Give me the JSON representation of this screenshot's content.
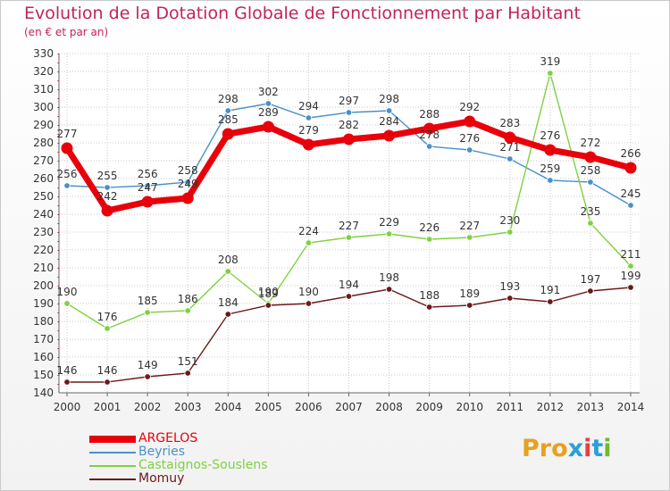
{
  "title": "Evolution de la Dotation Globale de Fonctionnement par Habitant",
  "subtitle": "(en € et par an)",
  "logo_text": "Proxiti",
  "logo_colors": [
    "#e8a020",
    "#e8a020",
    "#e8a020",
    "#2a9fd8",
    "#e84040",
    "#2a9fd8",
    "#70b830"
  ],
  "chart_data": {
    "type": "line",
    "x": [
      "2000",
      "2001",
      "2002",
      "2003",
      "2004",
      "2005",
      "2006",
      "2007",
      "2008",
      "2009",
      "2010",
      "2011",
      "2012",
      "2013",
      "2014"
    ],
    "ylim": [
      140,
      330
    ],
    "yticks": [
      140,
      150,
      160,
      170,
      180,
      190,
      200,
      210,
      220,
      230,
      240,
      250,
      260,
      270,
      280,
      290,
      300,
      310,
      320,
      330
    ],
    "grid": true,
    "legend_position": "bottom-left",
    "series": [
      {
        "name": "ARGELOS",
        "color": "#e8000b",
        "emphasis": true,
        "values": [
          277,
          242,
          247,
          249,
          285,
          289,
          279,
          282,
          284,
          288,
          292,
          283,
          276,
          272,
          266
        ],
        "labels": [
          "277",
          "242",
          "247",
          "249",
          "285",
          "289",
          "279",
          "282",
          "284",
          "288",
          "292",
          "283",
          "276",
          "272",
          "266"
        ]
      },
      {
        "name": "Beyries",
        "color": "#4a90c8",
        "emphasis": false,
        "values": [
          256,
          255,
          256,
          258,
          298,
          302,
          294,
          297,
          298,
          278,
          276,
          271,
          259,
          258,
          245
        ],
        "labels": [
          "256",
          "255",
          "256",
          "258",
          "298",
          "302",
          "294",
          "297",
          "298",
          "278",
          "276",
          "271",
          "259",
          "258",
          "245"
        ]
      },
      {
        "name": "Castaignos-Souslens",
        "color": "#7fd140",
        "emphasis": false,
        "values": [
          190,
          176,
          185,
          186,
          208,
          190,
          224,
          227,
          229,
          226,
          227,
          230,
          319,
          235,
          211
        ],
        "labels": [
          "190",
          "176",
          "185",
          "186",
          "208",
          "190",
          "224",
          "227",
          "229",
          "226",
          "227",
          "230",
          "319",
          "235",
          "211"
        ]
      },
      {
        "name": "Momuy",
        "color": "#6b1a1a",
        "emphasis": false,
        "values": [
          146,
          146,
          149,
          151,
          184,
          189,
          190,
          194,
          198,
          188,
          189,
          193,
          191,
          197,
          199
        ],
        "labels": [
          "146",
          "146",
          "149",
          "151",
          "184",
          "189",
          "190",
          "194",
          "198",
          "188",
          "189",
          "193",
          "191",
          "197",
          "199"
        ]
      }
    ]
  }
}
